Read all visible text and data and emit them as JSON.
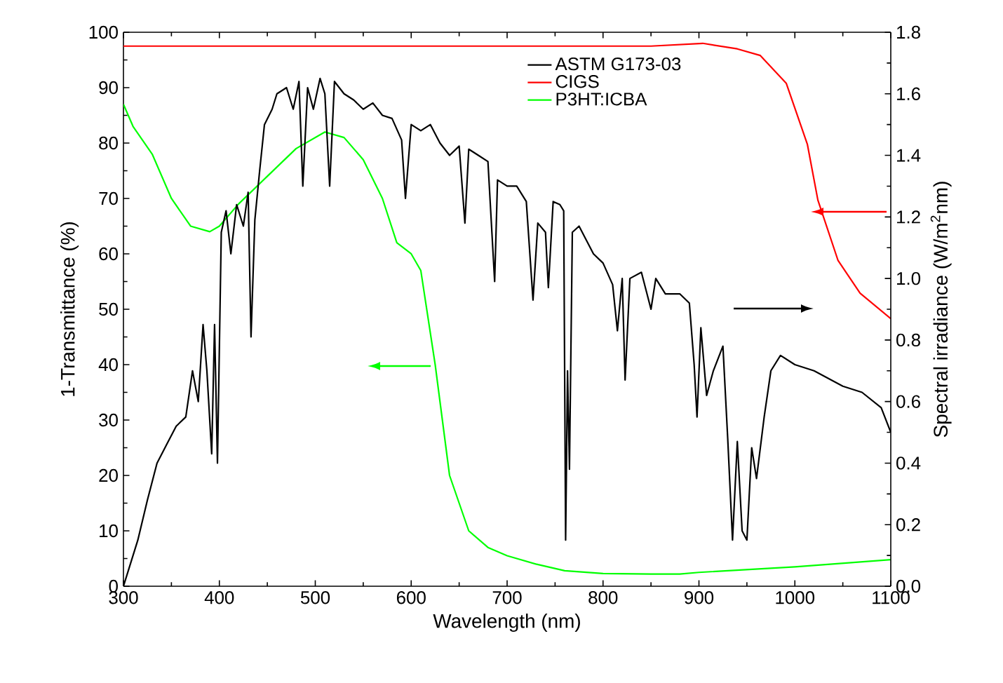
{
  "chart_data": {
    "type": "line",
    "xlabel": "Wavelength (nm)",
    "ylabel": "1-Transmittance (%)",
    "y2label": "Spectral irradiance (W/m$^{2}$nm)",
    "xlim": [
      300,
      1100
    ],
    "xticks": [
      300,
      400,
      500,
      600,
      700,
      800,
      900,
      1000,
      1100
    ],
    "ylim": [
      0,
      100
    ],
    "yticks": [
      0,
      10,
      20,
      30,
      40,
      50,
      60,
      70,
      80,
      90,
      100
    ],
    "y2lim": [
      0,
      1.8
    ],
    "y2ticks": [
      {
        "value": 0,
        "label": "0.0"
      },
      {
        "value": 0.2,
        "label": "0.2"
      },
      {
        "value": 0.4,
        "label": "0.4"
      },
      {
        "value": 0.6,
        "label": "0.6"
      },
      {
        "value": 0.8,
        "label": "0.8"
      },
      {
        "value": 1.0,
        "label": "1.0"
      },
      {
        "value": 1.2,
        "label": "1.2"
      },
      {
        "value": 1.4,
        "label": "1.4"
      },
      {
        "value": 1.6,
        "label": "1.6"
      },
      {
        "value": 1.8,
        "label": "1.8"
      }
    ],
    "legend": "top right",
    "grid": false,
    "marker": "none",
    "line_style": "solid",
    "series": [
      {
        "name": "ASTM G173-03",
        "color": "#000000",
        "axis": "y2",
        "x": [
          300,
          305,
          315,
          325,
          335,
          345,
          355,
          365,
          372,
          378,
          383,
          387,
          392,
          395,
          398,
          402,
          407,
          412,
          418,
          425,
          430,
          433,
          437,
          442,
          447,
          455,
          460,
          470,
          477,
          483,
          487,
          492,
          498,
          505,
          510,
          515,
          520,
          530,
          540,
          550,
          560,
          570,
          580,
          590,
          594,
          600,
          610,
          620,
          630,
          640,
          650,
          656,
          660,
          670,
          680,
          687,
          690,
          700,
          710,
          720,
          727,
          732,
          740,
          743,
          748,
          755,
          759,
          761,
          763,
          765,
          768,
          775,
          790,
          800,
          810,
          815,
          820,
          823,
          828,
          840,
          850,
          855,
          865,
          880,
          890,
          895,
          898,
          902,
          908,
          915,
          925,
          930,
          935,
          940,
          945,
          950,
          955,
          960,
          968,
          975,
          985,
          1000,
          1020,
          1050,
          1070,
          1090,
          1100
        ],
        "values": [
          0.0,
          0.05,
          0.15,
          0.28,
          0.4,
          0.46,
          0.52,
          0.55,
          0.7,
          0.6,
          0.85,
          0.7,
          0.43,
          0.85,
          0.4,
          1.15,
          1.22,
          1.08,
          1.24,
          1.17,
          1.28,
          0.81,
          1.19,
          1.35,
          1.5,
          1.55,
          1.6,
          1.62,
          1.55,
          1.64,
          1.3,
          1.62,
          1.55,
          1.65,
          1.6,
          1.3,
          1.64,
          1.6,
          1.58,
          1.55,
          1.57,
          1.53,
          1.52,
          1.45,
          1.26,
          1.5,
          1.48,
          1.5,
          1.44,
          1.4,
          1.43,
          1.18,
          1.42,
          1.4,
          1.38,
          0.99,
          1.32,
          1.3,
          1.3,
          1.25,
          0.93,
          1.18,
          1.15,
          0.97,
          1.25,
          1.24,
          1.22,
          0.15,
          0.7,
          0.38,
          1.15,
          1.17,
          1.08,
          1.05,
          0.98,
          0.83,
          1.0,
          0.67,
          1.0,
          1.02,
          0.9,
          1.0,
          0.95,
          0.95,
          0.92,
          0.72,
          0.55,
          0.84,
          0.62,
          0.7,
          0.78,
          0.48,
          0.15,
          0.47,
          0.18,
          0.15,
          0.45,
          0.35,
          0.55,
          0.7,
          0.75,
          0.72,
          0.7,
          0.65,
          0.63,
          0.58,
          0.5
        ]
      },
      {
        "name": "CIGS",
        "color": "#ff0000",
        "x": [
          300,
          600,
          850,
          904,
          940,
          964,
          991,
          1013,
          1024,
          1045,
          1068,
          1100
        ],
        "values": [
          97.5,
          97.5,
          97.5,
          98,
          97,
          95.8,
          90.8,
          79.8,
          69.7,
          58.8,
          52.9,
          48.3
        ]
      },
      {
        "name": "P3HT:ICBA",
        "color": "#00ff00",
        "x": [
          300,
          310,
          330,
          350,
          370,
          390,
          400,
          420,
          450,
          480,
          510,
          530,
          550,
          570,
          585,
          600,
          610,
          625,
          640,
          660,
          680,
          700,
          730,
          760,
          800,
          850,
          880,
          900,
          1000,
          1100
        ],
        "values": [
          87,
          83,
          78,
          70,
          65,
          64,
          65,
          69,
          74,
          79,
          82,
          81,
          77,
          70,
          62,
          60,
          57,
          40,
          20,
          10,
          7,
          5.5,
          4,
          2.8,
          2.3,
          2.2,
          2.2,
          2.5,
          3.5,
          4.8
        ]
      }
    ]
  }
}
